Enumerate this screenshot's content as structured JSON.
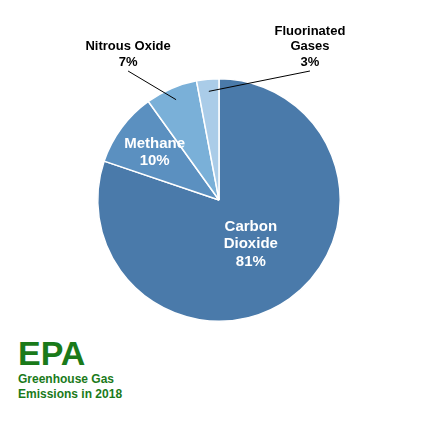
{
  "chart_data": {
    "type": "pie",
    "title": "EPA",
    "subtitle": "Greenhouse Gas\nEmissions in 2018",
    "categories": [
      "Carbon\nDioxide",
      "Methane",
      "Nitrous Oxide",
      "Fluorinated\nGases"
    ],
    "values": [
      81,
      10,
      7,
      3
    ],
    "value_labels": [
      "81%",
      "10%",
      "7%",
      "3%"
    ],
    "colors": [
      "#4a7aaa",
      "#5b90c0",
      "#7ab0d8",
      "#aacce8"
    ],
    "data_labels": true
  }
}
